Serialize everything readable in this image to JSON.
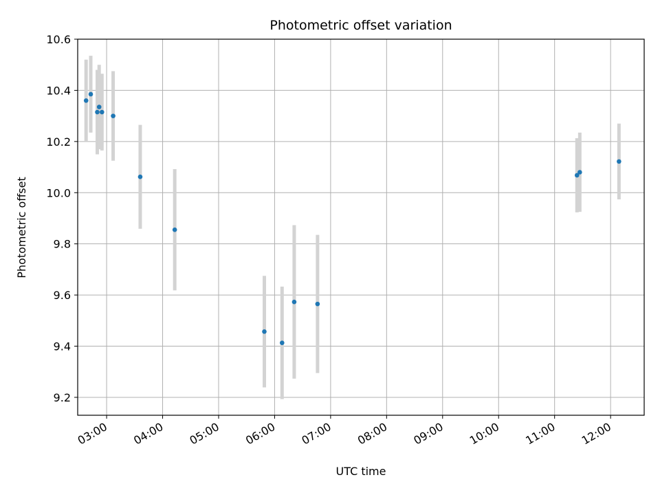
{
  "chart_data": {
    "type": "scatter",
    "title": "Photometric offset variation",
    "xlabel": "UTC time",
    "ylabel": "Photometric offset",
    "xlim": [
      "02:29",
      "12:36"
    ],
    "ylim": [
      9.13,
      10.6
    ],
    "x_ticks": [
      "03:00",
      "04:00",
      "05:00",
      "06:00",
      "07:00",
      "08:00",
      "09:00",
      "10:00",
      "11:00",
      "12:00"
    ],
    "y_ticks": [
      "9.2",
      "9.4",
      "9.6",
      "9.8",
      "10.0",
      "10.2",
      "10.4",
      "10.6"
    ],
    "grid": true,
    "marker_color": "#1f77b4",
    "errorbar_color": "#d3d3d3",
    "points": [
      {
        "x": "02:38",
        "y": 10.36,
        "err": 0.16
      },
      {
        "x": "02:43",
        "y": 10.385,
        "err": 0.15
      },
      {
        "x": "02:50",
        "y": 10.315,
        "err": 0.165
      },
      {
        "x": "02:52",
        "y": 10.335,
        "err": 0.165
      },
      {
        "x": "02:55",
        "y": 10.315,
        "err": 0.15
      },
      {
        "x": "03:07",
        "y": 10.3,
        "err": 0.175
      },
      {
        "x": "03:36",
        "y": 10.062,
        "err": 0.203
      },
      {
        "x": "04:13",
        "y": 9.855,
        "err": 0.237
      },
      {
        "x": "05:49",
        "y": 9.457,
        "err": 0.218
      },
      {
        "x": "06:08",
        "y": 9.413,
        "err": 0.22
      },
      {
        "x": "06:21",
        "y": 9.573,
        "err": 0.3
      },
      {
        "x": "06:46",
        "y": 9.565,
        "err": 0.27
      },
      {
        "x": "11:24",
        "y": 10.068,
        "err": 0.145
      },
      {
        "x": "11:27",
        "y": 10.08,
        "err": 0.155
      },
      {
        "x": "12:09",
        "y": 10.122,
        "err": 0.148
      }
    ]
  }
}
